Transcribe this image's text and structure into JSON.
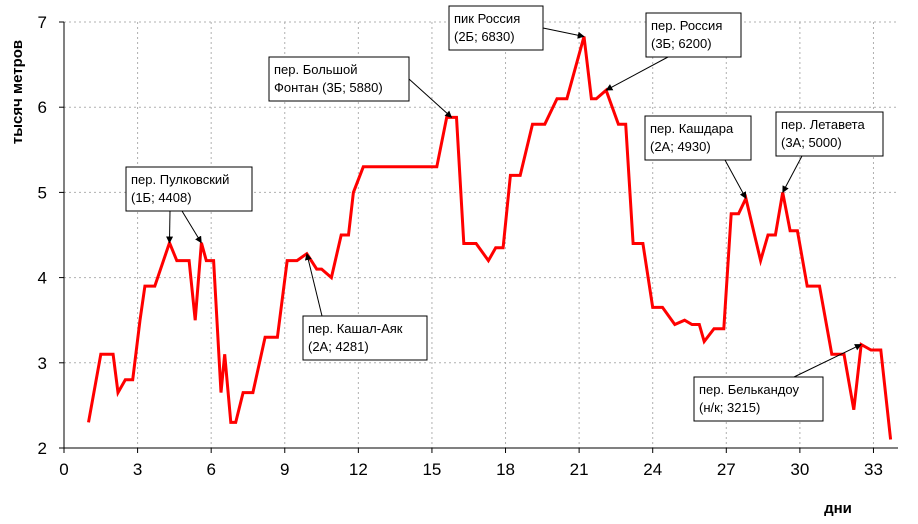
{
  "chart_data": {
    "type": "line",
    "xlabel": "дни",
    "ylabel": "тысяч метров",
    "xlim": [
      0,
      34
    ],
    "ylim": [
      2,
      7
    ],
    "xticks": [
      "0",
      "3",
      "6",
      "9",
      "12",
      "15",
      "18",
      "21",
      "24",
      "27",
      "30",
      "33"
    ],
    "yticks": [
      "2",
      "3",
      "4",
      "5",
      "6",
      "7"
    ],
    "grid": true,
    "line_color": "#ff0000",
    "series": [
      {
        "x": [
          1,
          1.5,
          2,
          2.2,
          2.5,
          2.8,
          3.1,
          3.3,
          3.7,
          4.3,
          4.6,
          5.1,
          5.35,
          5.6,
          5.8,
          6.1,
          6.4,
          6.55,
          6.8,
          7.0,
          7.3,
          7.7,
          8.2,
          8.7,
          9.1,
          9.5,
          9.9,
          10.3,
          10.5,
          10.9,
          11.3,
          11.6,
          11.8,
          12.2,
          12.4,
          14.0,
          15.2,
          15.6,
          16.0,
          16.3,
          16.8,
          17.3,
          17.6,
          17.9,
          18.2,
          18.6,
          19.1,
          19.6,
          20.1,
          20.5,
          21.2,
          21.5,
          21.7,
          22.1,
          22.6,
          22.9,
          23.2,
          23.6,
          24.0,
          24.4,
          24.9,
          25.3,
          25.6,
          25.9,
          26.1,
          26.5,
          26.9,
          27.2,
          27.5,
          27.8,
          28.4,
          28.7,
          29.0,
          29.3,
          29.6,
          29.9,
          30.3,
          30.8,
          31.3,
          31.8,
          32.2,
          32.5,
          32.9,
          33.3,
          33.7
        ],
        "y": [
          2.3,
          3.1,
          3.1,
          2.65,
          2.8,
          2.8,
          3.5,
          3.9,
          3.9,
          4.408,
          4.2,
          4.2,
          3.5,
          4.408,
          4.2,
          4.2,
          2.65,
          3.1,
          2.3,
          2.3,
          2.65,
          2.65,
          3.3,
          3.3,
          4.2,
          4.2,
          4.281,
          4.1,
          4.1,
          4.0,
          4.5,
          4.5,
          5.0,
          5.3,
          5.3,
          5.3,
          5.3,
          5.88,
          5.88,
          4.4,
          4.4,
          4.2,
          4.35,
          4.35,
          5.2,
          5.2,
          5.8,
          5.8,
          6.1,
          6.1,
          6.83,
          6.1,
          6.1,
          6.2,
          5.8,
          5.8,
          4.4,
          4.4,
          3.65,
          3.65,
          3.45,
          3.5,
          3.45,
          3.45,
          3.25,
          3.4,
          3.4,
          4.75,
          4.75,
          4.93,
          4.2,
          4.5,
          4.5,
          5.0,
          4.55,
          4.55,
          3.9,
          3.9,
          3.1,
          3.1,
          2.45,
          3.215,
          3.15,
          3.15,
          2.1
        ]
      }
    ],
    "annotations": [
      {
        "lines": [
          "пер. Пулковский",
          "(1Б; 4408)"
        ],
        "targets": [
          [
            4.3,
            4.408
          ],
          [
            5.6,
            4.408
          ]
        ]
      },
      {
        "lines": [
          "пер. Кашал-Аяк",
          "(2А; 4281)"
        ],
        "targets": [
          [
            9.9,
            4.281
          ]
        ]
      },
      {
        "lines": [
          "пер. Большой",
          "Фонтан (3Б; 5880)"
        ],
        "targets": [
          [
            15.8,
            5.88
          ]
        ]
      },
      {
        "lines": [
          "пик Россия",
          "(2Б; 6830)"
        ],
        "targets": [
          [
            21.2,
            6.83
          ]
        ]
      },
      {
        "lines": [
          "пер. Россия",
          "(3Б; 6200)"
        ],
        "targets": [
          [
            22.1,
            6.2
          ]
        ]
      },
      {
        "lines": [
          "пер. Кашдара",
          "(2А; 4930)"
        ],
        "targets": [
          [
            27.8,
            4.93
          ]
        ]
      },
      {
        "lines": [
          "пер. Летавета",
          "(3А; 5000)"
        ],
        "targets": [
          [
            29.3,
            5.0
          ]
        ]
      },
      {
        "lines": [
          "пер. Белькандоу",
          "(н/к; 3215)"
        ],
        "targets": [
          [
            32.5,
            3.215
          ]
        ]
      }
    ]
  }
}
